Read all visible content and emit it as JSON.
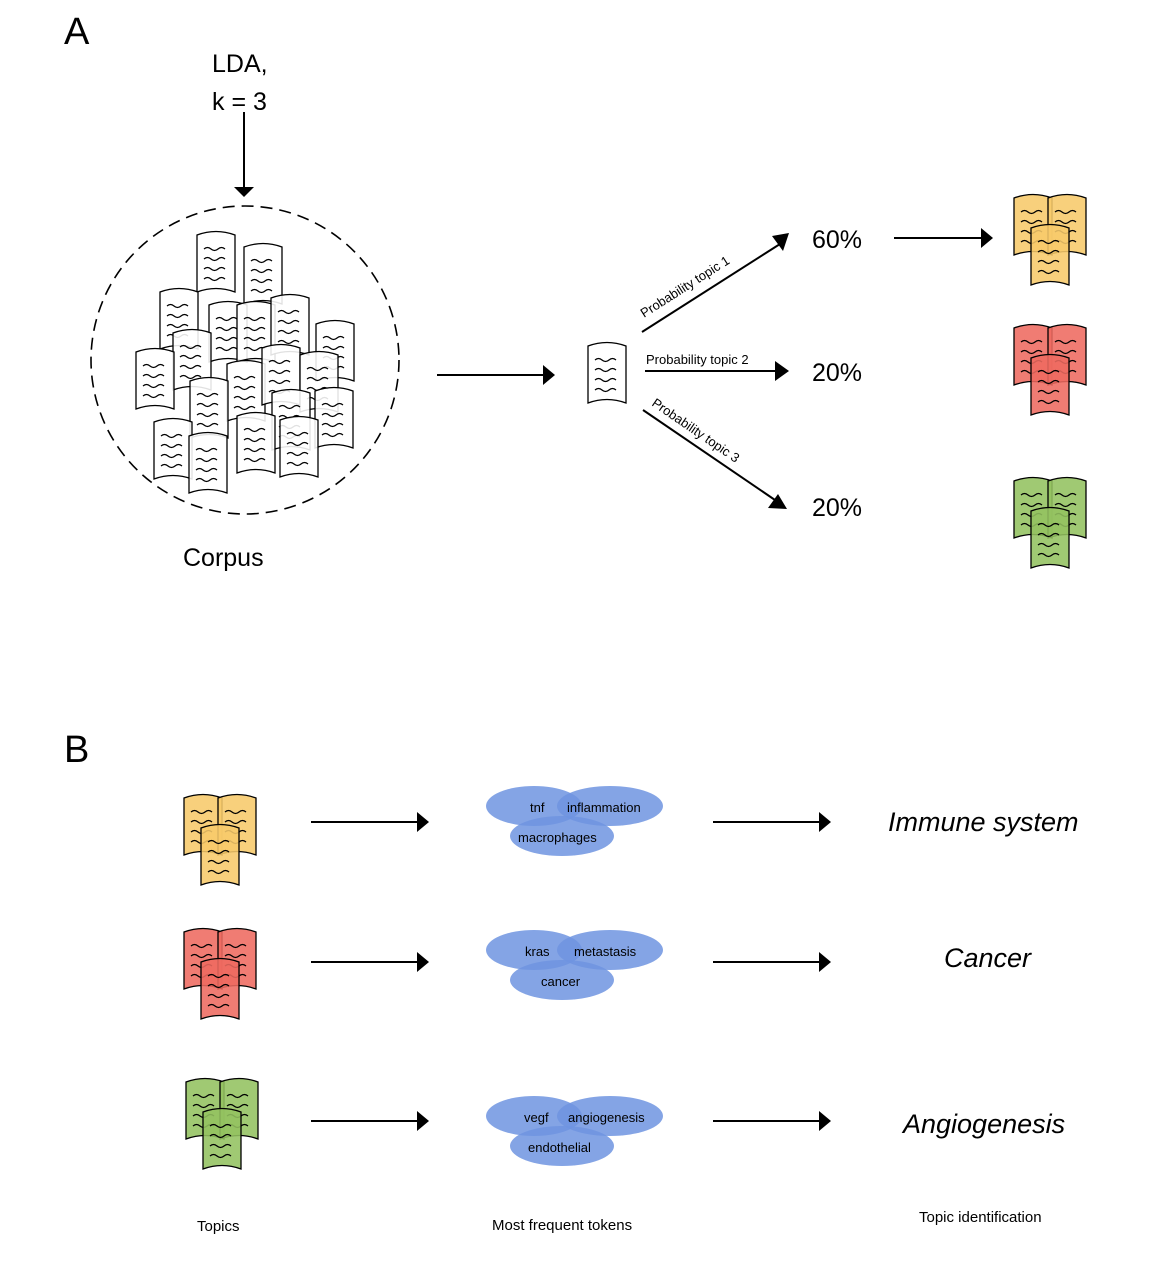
{
  "panel_a": {
    "label": "A",
    "input_line1": "LDA,",
    "input_line2": "k = 3",
    "corpus_label": "Corpus",
    "branches": [
      {
        "prob_label": "Probability topic 1",
        "percent": "60%",
        "color": "#f7c96a"
      },
      {
        "prob_label": "Probability topic 2",
        "percent": "20%",
        "color": "#ee6a60"
      },
      {
        "prob_label": "Probability topic 3",
        "percent": "20%",
        "color": "#93c160"
      }
    ]
  },
  "panel_b": {
    "label": "B",
    "rows": [
      {
        "color": "#f7c96a",
        "tokens": [
          "tnf",
          "inflammation",
          "macrophages"
        ],
        "topic": "Immune system"
      },
      {
        "color": "#ee6a60",
        "tokens": [
          "kras",
          "metastasis",
          "cancer"
        ],
        "topic": "Cancer"
      },
      {
        "color": "#93c160",
        "tokens": [
          "vegf",
          "angiogenesis",
          "endothelial"
        ],
        "topic": "Angiogenesis"
      }
    ],
    "captions": {
      "topics": "Topics",
      "tokens": "Most frequent tokens",
      "identification": "Topic identification"
    }
  },
  "colors": {
    "document_fill": "#ffffff",
    "token_bubble": "#6f94e0",
    "line": "#000000"
  },
  "icons": [
    "document-icon",
    "arrow-icon",
    "document-stack-icon",
    "token-bubble-icon"
  ]
}
